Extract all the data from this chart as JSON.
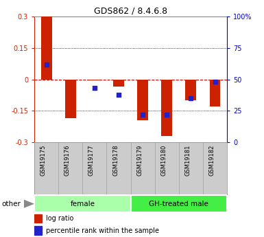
{
  "title": "GDS862 / 8.4.6.8",
  "samples": [
    "GSM19175",
    "GSM19176",
    "GSM19177",
    "GSM19178",
    "GSM19179",
    "GSM19180",
    "GSM19181",
    "GSM19182"
  ],
  "log_ratios": [
    0.3,
    -0.185,
    -0.005,
    -0.035,
    -0.195,
    -0.27,
    -0.1,
    -0.13
  ],
  "percentile_ranks": [
    62,
    null,
    43,
    38,
    22,
    22,
    35,
    48
  ],
  "ylim": [
    -0.3,
    0.3
  ],
  "yticks": [
    -0.3,
    -0.15,
    0.0,
    0.15,
    0.3
  ],
  "ytick_labels_left": [
    "-0.3",
    "-0.15",
    "0",
    "0.15",
    "0.3"
  ],
  "ytick_labels_right": [
    "0",
    "25",
    "50",
    "75",
    "100%"
  ],
  "groups": [
    {
      "label": "female",
      "start": 0,
      "end": 3,
      "color": "#aaffaa"
    },
    {
      "label": "GH-treated male",
      "start": 4,
      "end": 7,
      "color": "#44ee44"
    }
  ],
  "bar_color": "#cc2200",
  "dot_color": "#2222cc",
  "bar_width": 0.45,
  "dot_size": 22,
  "zero_line_color": "#cc0000",
  "bg_color": "#ffffff",
  "tick_label_area_color": "#cccccc",
  "other_label": "other",
  "legend_logratio": "log ratio",
  "legend_percentile": "percentile rank within the sample",
  "left_axis_color": "#cc2200",
  "right_axis_color": "#0000cc"
}
